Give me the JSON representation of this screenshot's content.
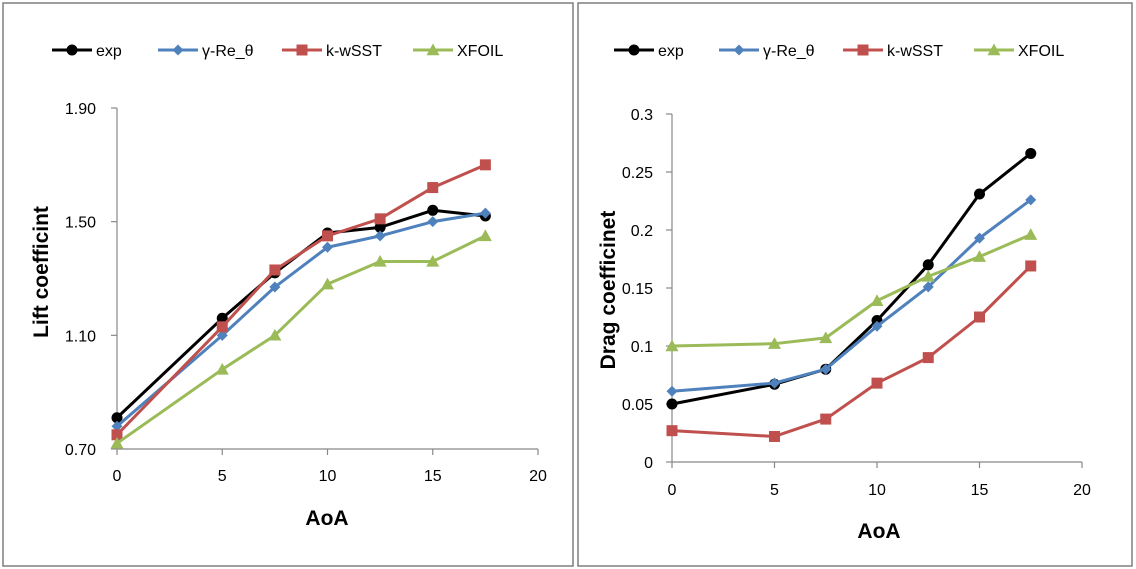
{
  "chart_data": [
    {
      "type": "line",
      "title": "",
      "xlabel": "AoA",
      "ylabel": "Lift coefficint",
      "xlim": [
        0,
        20
      ],
      "ylim": [
        0.7,
        1.9
      ],
      "xticks": [
        0,
        5,
        10,
        15,
        20
      ],
      "yticks": [
        0.7,
        1.1,
        1.5,
        1.9
      ],
      "ytick_labels": [
        "0.70",
        "1.10",
        "1.50",
        "1.90"
      ],
      "legend_position": "top",
      "grid": false,
      "series": [
        {
          "name": "exp",
          "color": "#000000",
          "marker": "circle",
          "x": [
            0,
            5,
            7.5,
            10,
            12.5,
            15,
            17.5
          ],
          "y": [
            0.81,
            1.16,
            1.32,
            1.46,
            1.48,
            1.54,
            1.52
          ]
        },
        {
          "name": "γ-Re_θ",
          "color": "#4F81BD",
          "marker": "diamond",
          "x": [
            0,
            5,
            7.5,
            10,
            12.5,
            15,
            17.5
          ],
          "y": [
            0.78,
            1.1,
            1.27,
            1.41,
            1.45,
            1.5,
            1.53
          ]
        },
        {
          "name": "k-wSST",
          "color": "#C0504D",
          "marker": "square",
          "x": [
            0,
            5,
            7.5,
            10,
            12.5,
            15,
            17.5
          ],
          "y": [
            0.75,
            1.13,
            1.33,
            1.45,
            1.51,
            1.62,
            1.7
          ]
        },
        {
          "name": "XFOIL",
          "color": "#9BBB59",
          "marker": "triangle",
          "x": [
            0,
            5,
            7.5,
            10,
            12.5,
            15,
            17.5
          ],
          "y": [
            0.72,
            0.98,
            1.1,
            1.28,
            1.36,
            1.36,
            1.45
          ]
        }
      ]
    },
    {
      "type": "line",
      "title": "",
      "xlabel": "AoA",
      "ylabel": "Drag coefficinet",
      "xlim": [
        0,
        20
      ],
      "ylim": [
        0,
        0.3
      ],
      "xticks": [
        0,
        5,
        10,
        15,
        20
      ],
      "yticks": [
        0,
        0.05,
        0.1,
        0.15,
        0.2,
        0.25,
        0.3
      ],
      "ytick_labels": [
        "0",
        "0.05",
        "0.1",
        "0.15",
        "0.2",
        "0.25",
        "0.3"
      ],
      "legend_position": "top",
      "grid": false,
      "series": [
        {
          "name": "exp",
          "color": "#000000",
          "marker": "circle",
          "x": [
            0,
            5,
            7.5,
            10,
            12.5,
            15,
            17.5
          ],
          "y": [
            0.05,
            0.067,
            0.08,
            0.122,
            0.17,
            0.231,
            0.266
          ]
        },
        {
          "name": "γ-Re_θ",
          "color": "#4F81BD",
          "marker": "diamond",
          "x": [
            0,
            5,
            7.5,
            10,
            12.5,
            15,
            17.5
          ],
          "y": [
            0.061,
            0.068,
            0.08,
            0.117,
            0.151,
            0.193,
            0.226
          ]
        },
        {
          "name": "k-wSST",
          "color": "#C0504D",
          "marker": "square",
          "x": [
            0,
            5,
            7.5,
            10,
            12.5,
            15,
            17.5
          ],
          "y": [
            0.027,
            0.022,
            0.037,
            0.068,
            0.09,
            0.125,
            0.169
          ]
        },
        {
          "name": "XFOIL",
          "color": "#9BBB59",
          "marker": "triangle",
          "x": [
            0,
            5,
            7.5,
            10,
            12.5,
            15,
            17.5
          ],
          "y": [
            0.1,
            0.102,
            0.107,
            0.139,
            0.16,
            0.177,
            0.196
          ]
        }
      ]
    }
  ]
}
